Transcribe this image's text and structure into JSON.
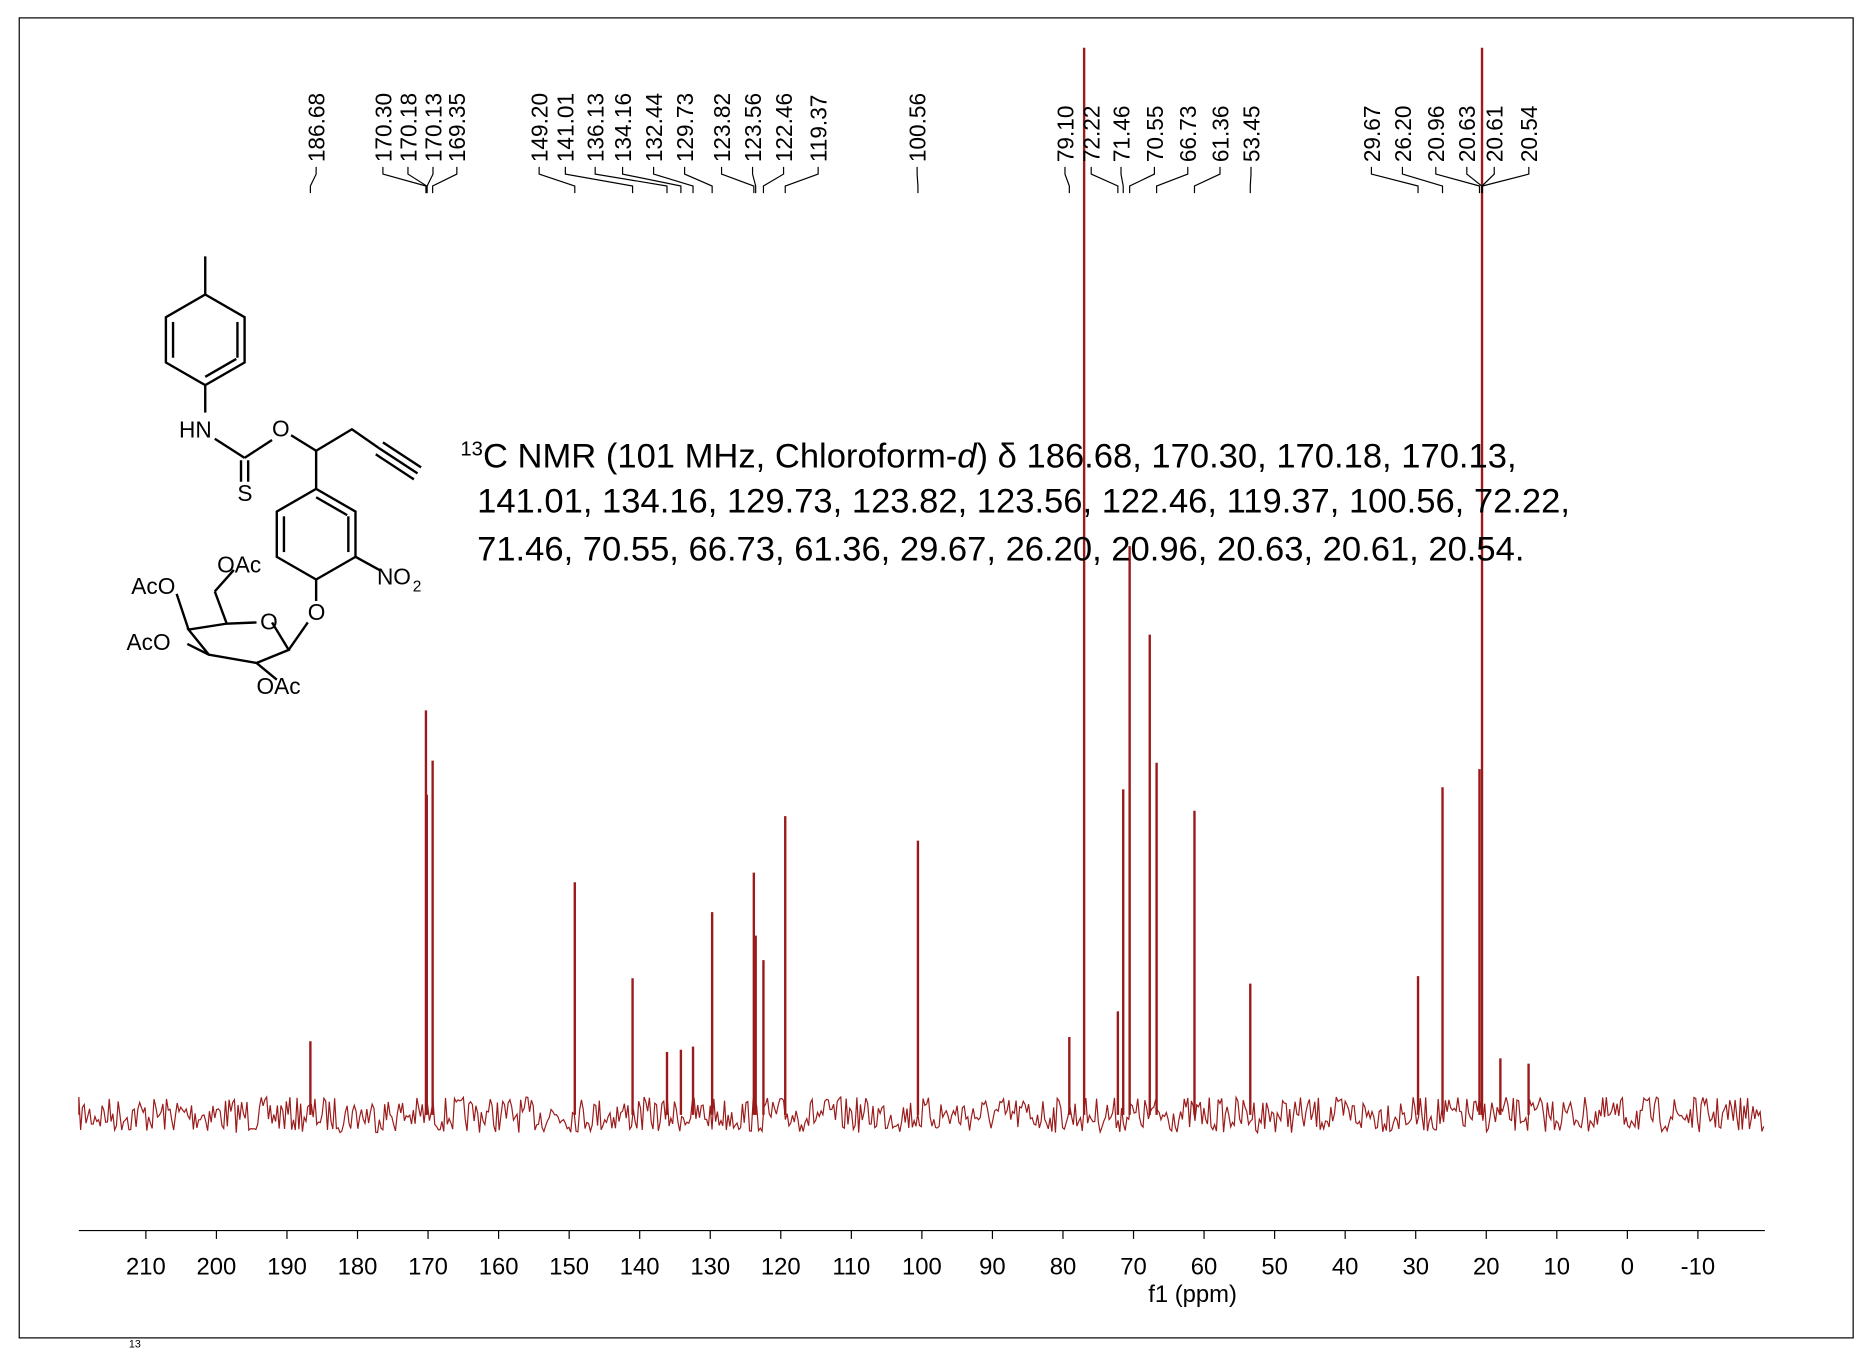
{
  "chart_data": {
    "type": "spectrum",
    "x_label": "f1 (ppm)",
    "color": "#9b1b1b",
    "xlim": [
      219.5,
      -19.5
    ],
    "ylim": [
      0,
      100
    ],
    "xticks": [
      210,
      200,
      190,
      180,
      170,
      160,
      150,
      140,
      130,
      120,
      110,
      100,
      90,
      80,
      70,
      60,
      50,
      40,
      30,
      20,
      10,
      0,
      -10
    ],
    "peaks": {
      "x": [
        186.68,
        170.3,
        170.18,
        169.35,
        149.2,
        141.01,
        136.13,
        134.16,
        132.44,
        129.73,
        123.82,
        123.56,
        122.46,
        119.37,
        100.56,
        79.1,
        77.0,
        72.22,
        71.46,
        70.55,
        67.7,
        66.73,
        61.36,
        53.45,
        29.67,
        26.2,
        20.96,
        20.6,
        18.0,
        14.0
      ],
      "values": [
        6.9,
        37.9,
        30,
        33.2,
        21.8,
        12.8,
        5.9,
        6.1,
        6.4,
        19,
        22.7,
        16.8,
        14.5,
        28,
        25.7,
        7.3,
        100,
        9.7,
        30.5,
        53.3,
        45,
        33,
        28.5,
        12.3,
        13,
        30.7,
        32.4,
        100,
        5.3,
        4.8
      ]
    },
    "peak_labels": [
      {
        "value": 186.68,
        "label": "186.68"
      },
      {
        "value": 170.3,
        "label": "170.30"
      },
      {
        "value": 170.18,
        "label": "170.18"
      },
      {
        "value": 170.13,
        "label": "170.13"
      },
      {
        "value": 169.35,
        "label": "169.35"
      },
      {
        "value": 149.2,
        "label": "149.20"
      },
      {
        "value": 141.01,
        "label": "141.01"
      },
      {
        "value": 136.13,
        "label": "136.13"
      },
      {
        "value": 134.16,
        "label": "134.16"
      },
      {
        "value": 132.44,
        "label": "132.44"
      },
      {
        "value": 129.73,
        "label": "129.73"
      },
      {
        "value": 123.82,
        "label": "123.82"
      },
      {
        "value": 123.56,
        "label": "123.56"
      },
      {
        "value": 122.46,
        "label": "122.46"
      },
      {
        "value": 119.37,
        "label": "119.37"
      },
      {
        "value": 100.56,
        "label": "100.56"
      },
      {
        "value": 79.1,
        "label": "79.10"
      },
      {
        "value": 72.22,
        "label": "72.22"
      },
      {
        "value": 71.46,
        "label": "71.46"
      },
      {
        "value": 70.55,
        "label": "70.55"
      },
      {
        "value": 66.73,
        "label": "66.73"
      },
      {
        "value": 61.36,
        "label": "61.36"
      },
      {
        "value": 53.45,
        "label": "53.45"
      },
      {
        "value": 29.67,
        "label": "29.67"
      },
      {
        "value": 26.2,
        "label": "26.20"
      },
      {
        "value": 20.96,
        "label": "20.96"
      },
      {
        "value": 20.63,
        "label": "20.63"
      },
      {
        "value": 20.61,
        "label": "20.61"
      },
      {
        "value": 20.54,
        "label": "20.54"
      }
    ],
    "annotation": {
      "superscript": "13",
      "prefix": "C NMR (101 MHz, Chloroform-",
      "italic": "d",
      "line1_rest": ") δ 186.68, 170.30, 170.18, 170.13,",
      "line2": "141.01, 134.16, 129.73, 123.82, 123.56, 122.46, 119.37, 100.56, 72.22,",
      "line3": "71.46, 70.55, 66.73, 61.36, 29.67, 26.20, 20.96, 20.63, 20.61, 20.54."
    }
  },
  "structure_labels": {
    "hn": "HN",
    "o1": "O",
    "s": "S",
    "no": "NO",
    "no_sub": "2",
    "o2": "O",
    "o_ring": "O",
    "oac1": "OAc",
    "aco1": "AcO",
    "aco2": "AcO",
    "oac2": "OAc"
  },
  "caption_fragment": "13"
}
